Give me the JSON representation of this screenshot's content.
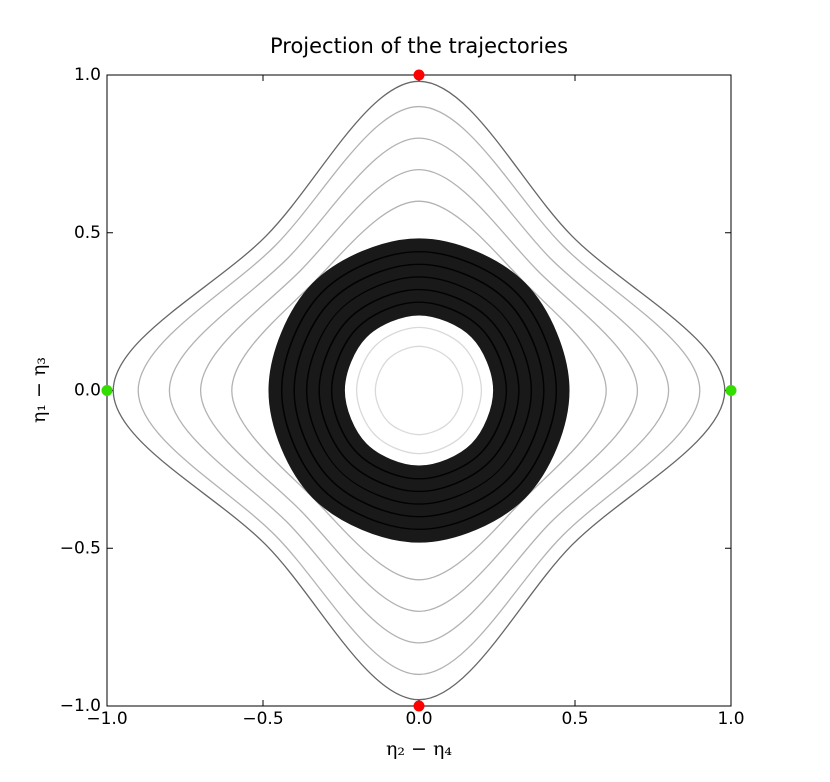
{
  "chart_data": {
    "type": "line",
    "title": "Projection of the trajectories",
    "x_label": "η₂ − η₄",
    "y_label": "η₁ − η₃",
    "xlim": [
      -1.0,
      1.0
    ],
    "ylim": [
      -1.0,
      1.0
    ],
    "xticks": [
      {
        "value": -1.0,
        "label": "−1.0"
      },
      {
        "value": -0.5,
        "label": "−0.5"
      },
      {
        "value": 0,
        "label": "0.0"
      },
      {
        "value": 0.5,
        "label": "0.5"
      },
      {
        "value": 1.0,
        "label": "1.0"
      }
    ],
    "yticks": [
      {
        "value": -1.0,
        "label": "−1.0"
      },
      {
        "value": -0.5,
        "label": "−0.5"
      },
      {
        "value": 0,
        "label": "0.0"
      },
      {
        "value": 0.5,
        "label": "0.5"
      },
      {
        "value": 1.0,
        "label": "1.0"
      }
    ],
    "series": [
      {
        "type": "line",
        "color": "#000000",
        "alpha": 0.6,
        "x": [
          0.98,
          0.49,
          0,
          -0.49,
          -0.98,
          -0.49,
          0,
          0.49
        ],
        "values": [
          0,
          0.49,
          0.98,
          0.49,
          0,
          -0.49,
          -0.98,
          -0.49
        ]
      },
      {
        "type": "line",
        "color": "#000000",
        "alpha": 0.3,
        "x": [
          0.9,
          0.46,
          0,
          -0.46,
          -0.9,
          -0.46,
          0,
          0.46
        ],
        "values": [
          0,
          0.46,
          0.9,
          0.46,
          0,
          -0.46,
          -0.9,
          -0.46
        ]
      },
      {
        "type": "line",
        "color": "#000000",
        "alpha": 0.3,
        "x": [
          0.8,
          0.42,
          0,
          -0.42,
          -0.8,
          -0.42,
          0,
          0.42
        ],
        "values": [
          0,
          0.42,
          0.8,
          0.42,
          0,
          -0.42,
          -0.8,
          -0.42
        ]
      },
      {
        "type": "line",
        "color": "#000000",
        "alpha": 0.3,
        "x": [
          0.7,
          0.38,
          0,
          -0.38,
          -0.7,
          -0.38,
          0,
          0.38
        ],
        "values": [
          0,
          0.38,
          0.7,
          0.38,
          0,
          -0.38,
          -0.7,
          -0.38
        ]
      },
      {
        "type": "line",
        "color": "#000000",
        "alpha": 0.3,
        "x": [
          0.6,
          0.34,
          0,
          -0.34,
          -0.6,
          -0.34,
          0,
          0.34
        ],
        "values": [
          0,
          0.34,
          0.6,
          0.34,
          0,
          -0.34,
          -0.6,
          -0.34
        ]
      },
      {
        "type": "line",
        "color": "#000000",
        "alpha": 0.9,
        "x": [
          0.46,
          0.325,
          0,
          -0.325,
          -0.46,
          -0.325,
          0,
          0.325
        ],
        "values": [
          0,
          0.325,
          0.46,
          0.325,
          0,
          -0.325,
          -0.46,
          -0.325
        ]
      },
      {
        "type": "line",
        "color": "#000000",
        "alpha": 0.9,
        "x": [
          0.42,
          0.297,
          0,
          -0.297,
          -0.42,
          -0.297,
          0,
          0.297
        ],
        "values": [
          0,
          0.297,
          0.42,
          0.297,
          0,
          -0.297,
          -0.42,
          -0.297
        ]
      },
      {
        "type": "line",
        "color": "#000000",
        "alpha": 0.9,
        "x": [
          0.38,
          0.269,
          0,
          -0.269,
          -0.38,
          -0.269,
          0,
          0.269
        ],
        "values": [
          0,
          0.269,
          0.38,
          0.269,
          0,
          -0.269,
          -0.38,
          -0.269
        ]
      },
      {
        "type": "line",
        "color": "#000000",
        "alpha": 0.9,
        "x": [
          0.34,
          0.24,
          0,
          -0.24,
          -0.34,
          -0.24,
          0,
          0.24
        ],
        "values": [
          0,
          0.24,
          0.34,
          0.24,
          0,
          -0.24,
          -0.34,
          -0.24
        ]
      },
      {
        "type": "line",
        "color": "#000000",
        "alpha": 0.9,
        "x": [
          0.3,
          0.212,
          0,
          -0.212,
          -0.3,
          -0.212,
          0,
          0.212
        ],
        "values": [
          0,
          0.212,
          0.3,
          0.212,
          0,
          -0.212,
          -0.3,
          -0.212
        ]
      },
      {
        "type": "line",
        "color": "#000000",
        "alpha": 0.9,
        "x": [
          0.26,
          0.184,
          0,
          -0.184,
          -0.26,
          -0.184,
          0,
          0.184
        ],
        "values": [
          0,
          0.184,
          0.26,
          0.184,
          0,
          -0.184,
          -0.26,
          -0.184
        ]
      },
      {
        "type": "line",
        "color": "#000000",
        "alpha": 0.15,
        "x": [
          0.2,
          0.141,
          0,
          -0.141,
          -0.2,
          -0.141,
          0,
          0.141
        ],
        "values": [
          0,
          0.141,
          0.2,
          0.141,
          0,
          -0.141,
          -0.2,
          -0.141
        ]
      },
      {
        "type": "line",
        "color": "#000000",
        "alpha": 0.15,
        "x": [
          0.14,
          0.099,
          0,
          -0.099,
          -0.14,
          -0.099,
          0,
          0.099
        ],
        "values": [
          0,
          0.099,
          0.14,
          0.099,
          0,
          -0.099,
          -0.14,
          -0.099
        ]
      },
      {
        "type": "scatter",
        "color": "#ff0000",
        "x": [
          0,
          0
        ],
        "values": [
          1.0,
          -1.0
        ]
      },
      {
        "type": "scatter",
        "color": "#33dd00",
        "x": [
          -1.0,
          1.0
        ],
        "values": [
          0,
          0
        ]
      }
    ]
  }
}
